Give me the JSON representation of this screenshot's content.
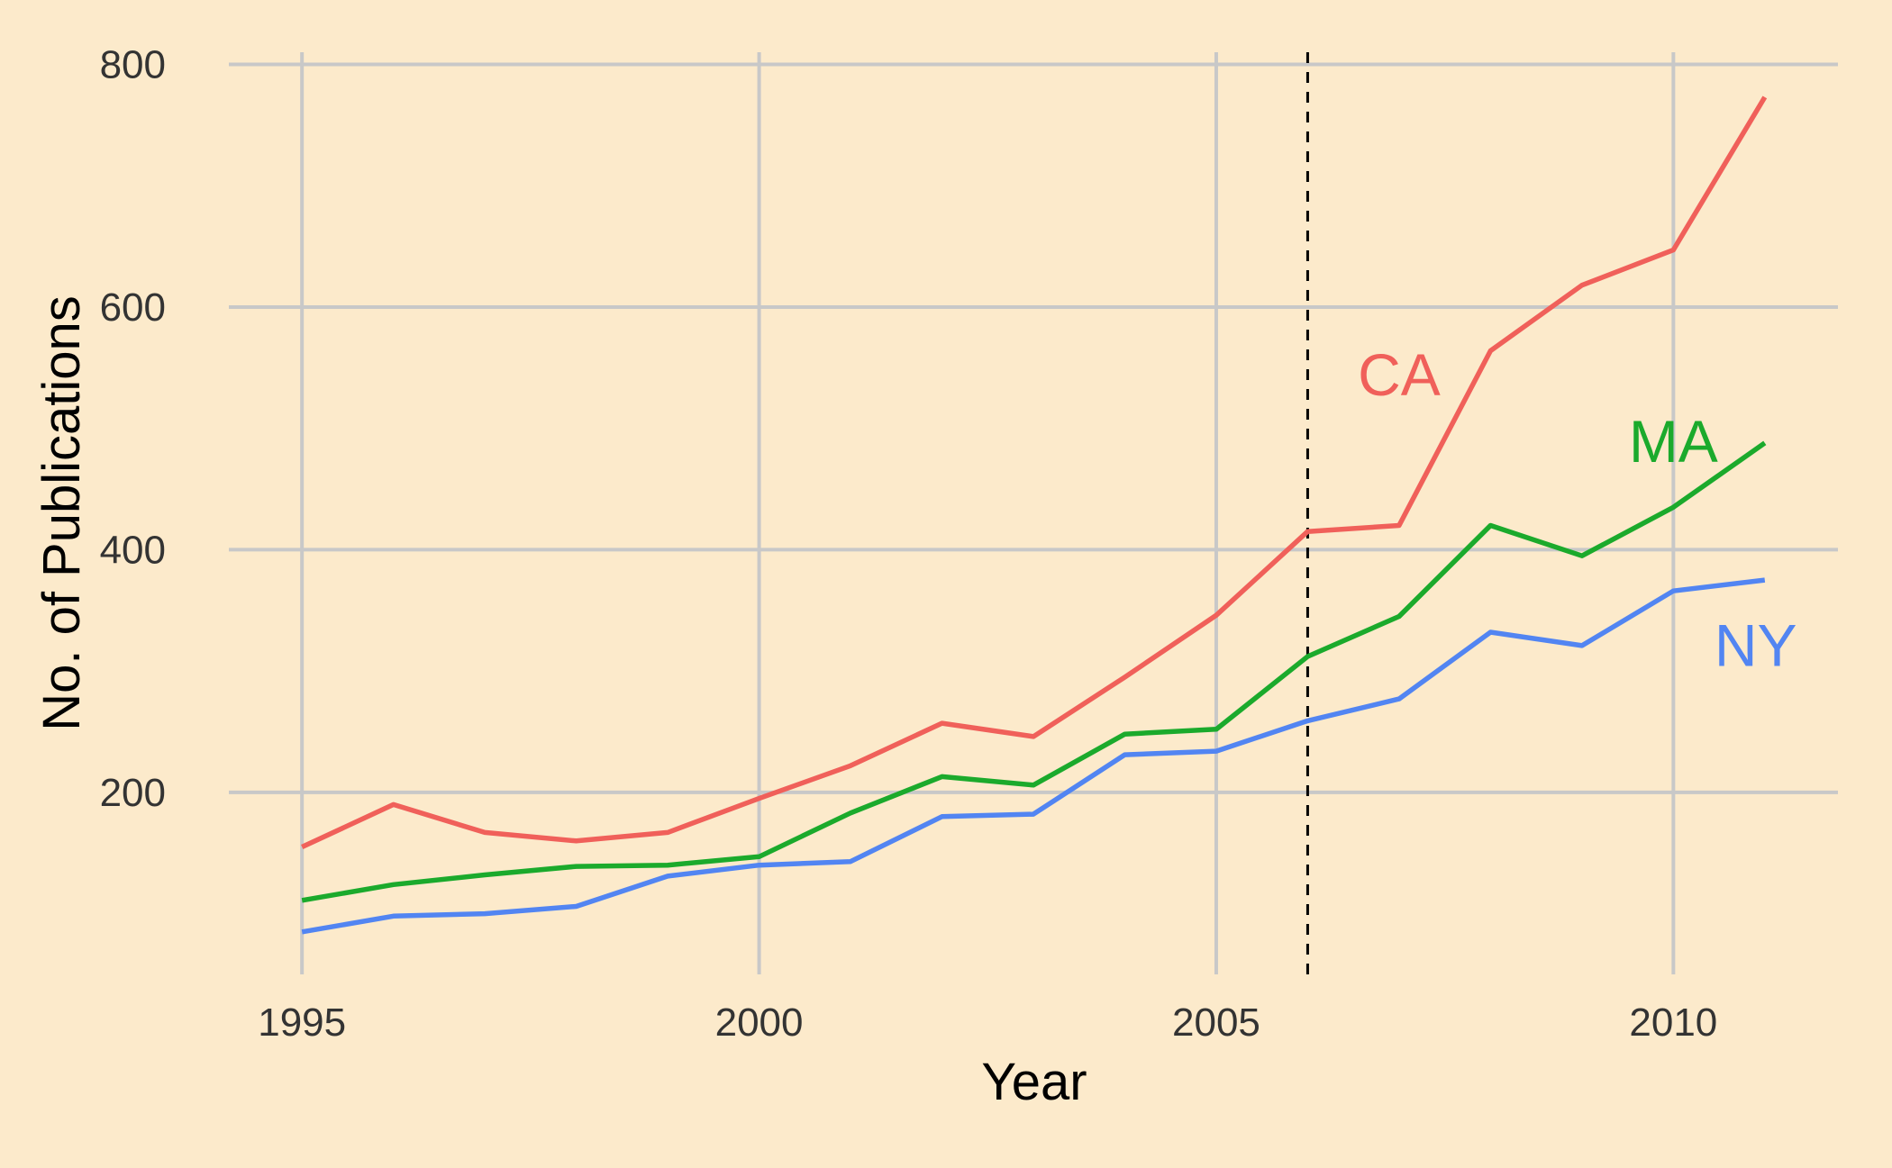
{
  "chart_data": {
    "type": "line",
    "xlabel": "Year",
    "ylabel": "No. of Publications",
    "xlim": [
      1994.2,
      2011.8
    ],
    "ylim": [
      50,
      810
    ],
    "x_ticks": [
      1995,
      2000,
      2005,
      2010
    ],
    "y_ticks": [
      200,
      400,
      600,
      800
    ],
    "grid": true,
    "vertical_reference_line": {
      "x": 2006,
      "style": "dashed",
      "color": "#000000"
    },
    "x": [
      1995,
      1996,
      1997,
      1998,
      1999,
      2000,
      2001,
      2002,
      2003,
      2004,
      2005,
      2006,
      2007,
      2008,
      2009,
      2010,
      2011
    ],
    "series": [
      {
        "name": "CA",
        "color": "#F0605A",
        "values": [
          155,
          190,
          167,
          160,
          167,
          195,
          222,
          257,
          246,
          295,
          346,
          415,
          420,
          564,
          618,
          647,
          773
        ]
      },
      {
        "name": "MA",
        "color": "#1BAA2C",
        "values": [
          111,
          124,
          132,
          139,
          140,
          147,
          183,
          213,
          206,
          248,
          252,
          312,
          345,
          420,
          395,
          435,
          488
        ]
      },
      {
        "name": "NY",
        "color": "#5285F2",
        "values": [
          85,
          98,
          100,
          106,
          131,
          140,
          143,
          180,
          182,
          231,
          234,
          259,
          277,
          332,
          321,
          366,
          375
        ]
      }
    ],
    "series_labels": [
      {
        "text": "CA",
        "x": 2007,
        "y": 545
      },
      {
        "text": "MA",
        "x": 2010,
        "y": 490
      },
      {
        "text": "NY",
        "x": 2010.9,
        "y": 322
      }
    ]
  }
}
